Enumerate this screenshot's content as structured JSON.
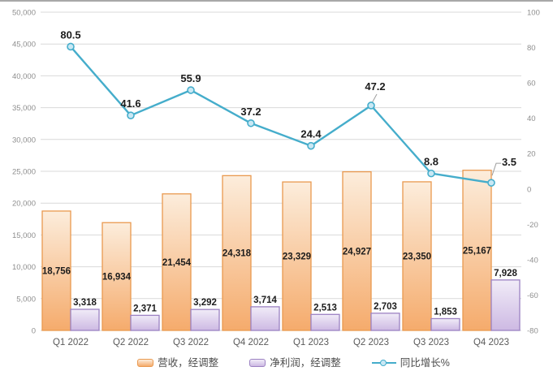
{
  "colors": {
    "gridline": "#d9d9d9",
    "axis_text": "#8e8e8e",
    "category_text": "#5a5a5a",
    "data_label": "#1c1c1c",
    "leader_line": "#9e9e9e",
    "top_border": "#a8a8a8",
    "revenue_border": "#e9994f",
    "revenue_fill_top": "#fceddc",
    "revenue_fill_bottom": "#f5ab6c",
    "profit_border": "#9c82c2",
    "profit_fill_top": "#f1ecf8",
    "profit_fill_bottom": "#cdb9e3",
    "growth_line": "#45adcb",
    "growth_marker_fill": "#c9e8f4"
  },
  "chart_data": {
    "type": "combo-bar-line",
    "title": "",
    "categories": [
      "Q1 2022",
      "Q2 2022",
      "Q3 2022",
      "Q4 2022",
      "Q1 2023",
      "Q2 2023",
      "Q3 2023",
      "Q4 2023"
    ],
    "series": [
      {
        "id": "revenue",
        "name": "营收，经调整",
        "type": "bar",
        "axis": "left",
        "label_placement": "inside-center",
        "values": [
          18756,
          16934,
          21454,
          24318,
          23329,
          24927,
          23350,
          25167
        ],
        "labels": [
          "18,756",
          "16,934",
          "21,454",
          "24,318",
          "23,329",
          "24,927",
          "23,350",
          "25,167"
        ],
        "border": "#e9994f",
        "fill_top": "#fceddc",
        "fill_bottom": "#f5ab6c"
      },
      {
        "id": "net-profit",
        "name": "净利润，经调整",
        "type": "bar",
        "axis": "left",
        "label_placement": "outside-end",
        "values": [
          3318,
          2371,
          3292,
          3714,
          2513,
          2703,
          1853,
          7928
        ],
        "labels": [
          "3,318",
          "2,371",
          "3,292",
          "3,714",
          "2,513",
          "2,703",
          "1,853",
          "7,928"
        ],
        "border": "#9c82c2",
        "fill_top": "#f1ecf8",
        "fill_bottom": "#cdb9e3"
      },
      {
        "id": "yoy-growth",
        "name": "同比增长%",
        "type": "line",
        "axis": "right",
        "values": [
          80.5,
          41.6,
          55.9,
          37.2,
          24.4,
          47.2,
          8.8,
          3.5
        ],
        "labels": [
          "80.5",
          "41.6",
          "55.9",
          "37.2",
          "24.4",
          "47.2",
          "8.8",
          "3.5"
        ],
        "color": "#45adcb",
        "marker_fill": "#c9e8f4",
        "label_overrides": {
          "5": {
            "dx": 5,
            "dy": -19,
            "leader": [
              [
                1.5,
                -4
              ],
              [
                7,
                -14
              ]
            ]
          },
          "7": {
            "dx": 22,
            "dy": -21,
            "leader": [
              [
                1,
                -9
              ],
              [
                6,
                -24
              ],
              [
                12,
                -24
              ]
            ]
          }
        }
      }
    ],
    "left_axis": {
      "min": 0,
      "max": 50000,
      "step": 5000,
      "tick_values": [
        0,
        5000,
        10000,
        15000,
        20000,
        25000,
        30000,
        35000,
        40000,
        45000,
        50000
      ],
      "tick_labels": [
        "0",
        "5,000",
        "10,000",
        "15,000",
        "20,000",
        "25,000",
        "30,000",
        "35,000",
        "40,000",
        "45,000",
        "50,000"
      ]
    },
    "right_axis": {
      "min": -80,
      "max": 100,
      "step": 20,
      "tick_values": [
        -80,
        -60,
        -40,
        -20,
        0,
        20,
        40,
        60,
        80,
        100
      ],
      "tick_labels": [
        "-80",
        "-60",
        "-40",
        "-20",
        "0",
        "20",
        "40",
        "60",
        "80",
        "100"
      ]
    },
    "grid": true,
    "legend_position": "bottom"
  },
  "legend": {
    "items": [
      {
        "label": "营收，经调整"
      },
      {
        "label": "净利润，经调整"
      },
      {
        "label": "同比增长%"
      }
    ]
  }
}
